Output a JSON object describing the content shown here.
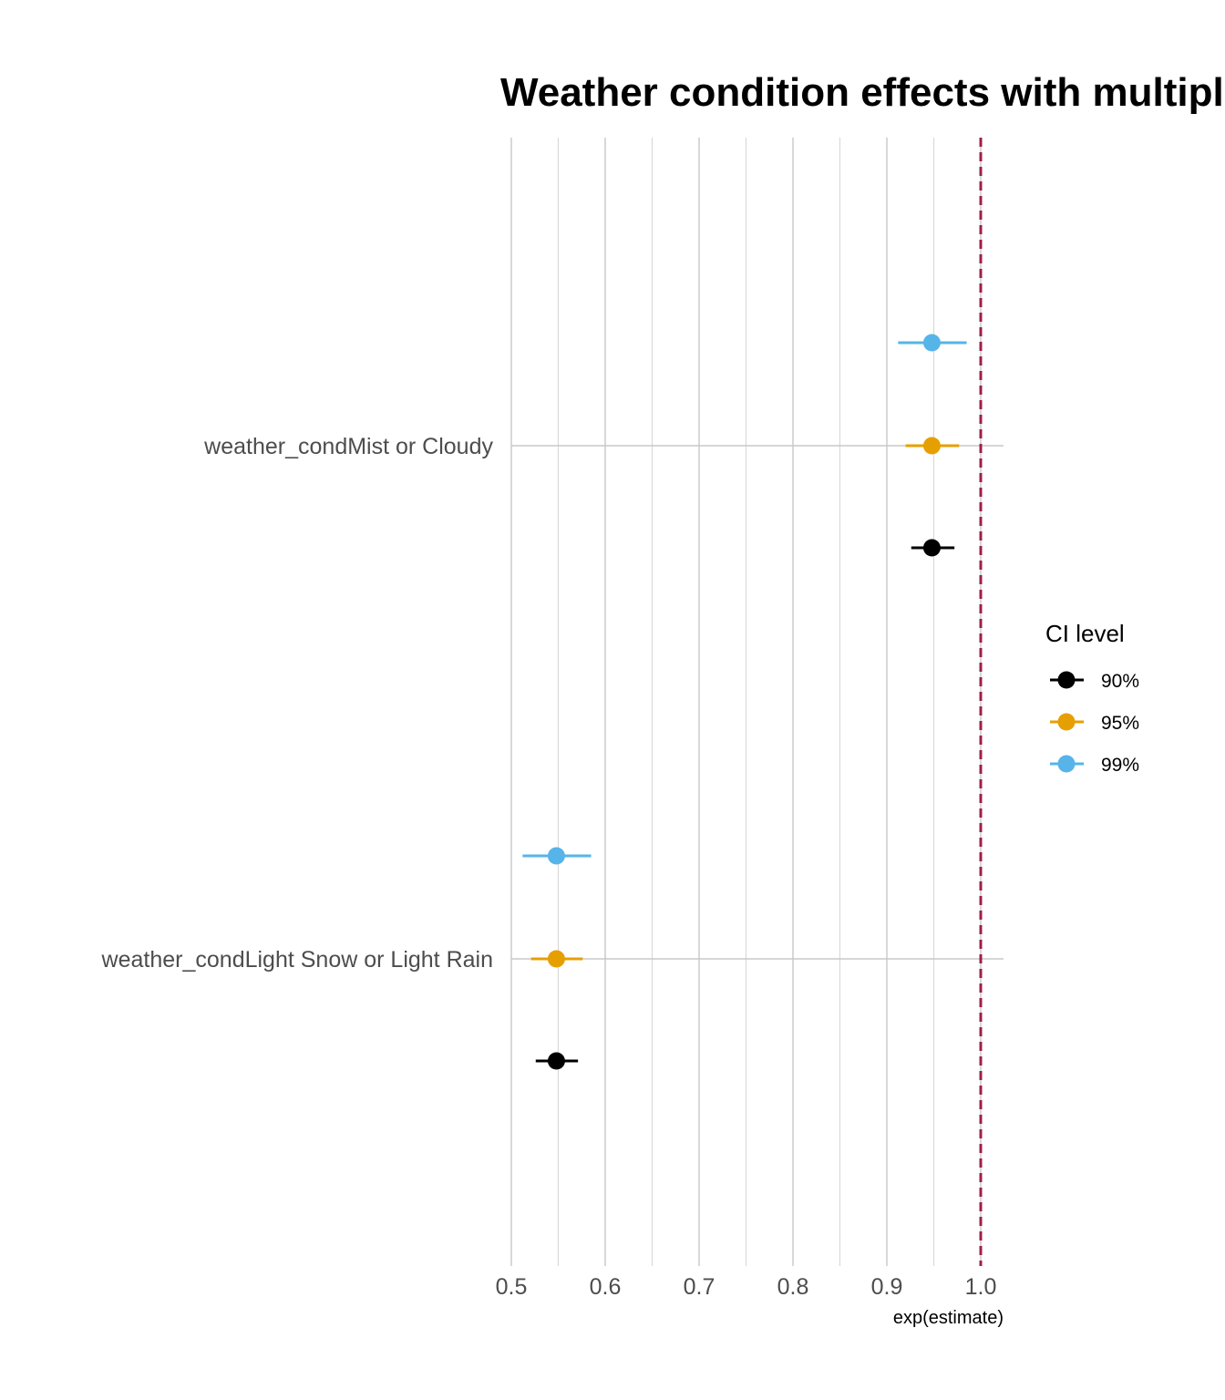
{
  "chart_data": {
    "type": "scatter",
    "title": "Weather condition effects with multiple confidence levels",
    "xlabel": "exp(estimate)",
    "ylabel": "",
    "xlim": [
      0.5,
      1.025
    ],
    "x_ticks": [
      0.5,
      0.6,
      0.7,
      0.8,
      0.9,
      1.0
    ],
    "x_tick_labels": [
      "0.5",
      "0.6",
      "0.7",
      "0.8",
      "0.9",
      "1.0"
    ],
    "reference_line": 1.0,
    "reference_line_color": "#9e1f4f",
    "grid": true,
    "legend_position": "right",
    "legend_title": "CI level",
    "categories": [
      "weather_condMist or Cloudy",
      "weather_condLight Snow or Light Rain"
    ],
    "series": [
      {
        "name": "90%",
        "color": "#000000",
        "points": [
          {
            "category": "weather_condMist or Cloudy",
            "estimate": 0.948,
            "low": 0.926,
            "high": 0.972
          },
          {
            "category": "weather_condLight Snow or Light Rain",
            "estimate": 0.548,
            "low": 0.526,
            "high": 0.571
          }
        ]
      },
      {
        "name": "95%",
        "color": "#e69f00",
        "points": [
          {
            "category": "weather_condMist or Cloudy",
            "estimate": 0.948,
            "low": 0.92,
            "high": 0.977
          },
          {
            "category": "weather_condLight Snow or Light Rain",
            "estimate": 0.548,
            "low": 0.521,
            "high": 0.576
          }
        ]
      },
      {
        "name": "99%",
        "color": "#56b4e9",
        "points": [
          {
            "category": "weather_condMist or Cloudy",
            "estimate": 0.948,
            "low": 0.912,
            "high": 0.985
          },
          {
            "category": "weather_condLight Snow or Light Rain",
            "estimate": 0.548,
            "low": 0.512,
            "high": 0.585
          }
        ]
      }
    ]
  }
}
